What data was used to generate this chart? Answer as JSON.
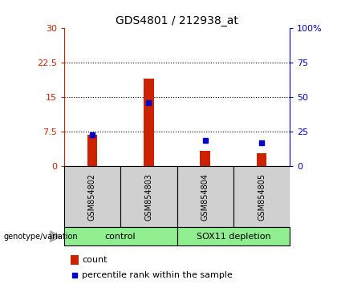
{
  "title": "GDS4801 / 212938_at",
  "samples": [
    "GSM854802",
    "GSM854803",
    "GSM854804",
    "GSM854805"
  ],
  "count_values": [
    6.8,
    19.0,
    3.3,
    2.8
  ],
  "percentile_values": [
    22.5,
    46.0,
    18.5,
    17.0
  ],
  "ylim_left": [
    0,
    30
  ],
  "ylim_right": [
    0,
    100
  ],
  "yticks_left": [
    0,
    7.5,
    15,
    22.5,
    30
  ],
  "ytick_labels_left": [
    "0",
    "7.5",
    "15",
    "22.5",
    "30"
  ],
  "yticks_right": [
    0,
    25,
    50,
    75,
    100
  ],
  "ytick_labels_right": [
    "0",
    "25",
    "50",
    "75",
    "100%"
  ],
  "bar_color": "#CC2200",
  "square_color": "#0000CC",
  "bar_width": 0.18,
  "background_plot": "white",
  "background_label": "#d0d0d0",
  "left_axis_color": "#CC2200",
  "right_axis_color": "#0000CC",
  "group_color": "#90EE90",
  "group_labels": [
    "control",
    "SOX11 depletion"
  ],
  "genotype_label": "genotype/variation",
  "legend_count": "count",
  "legend_percentile": "percentile rank within the sample"
}
